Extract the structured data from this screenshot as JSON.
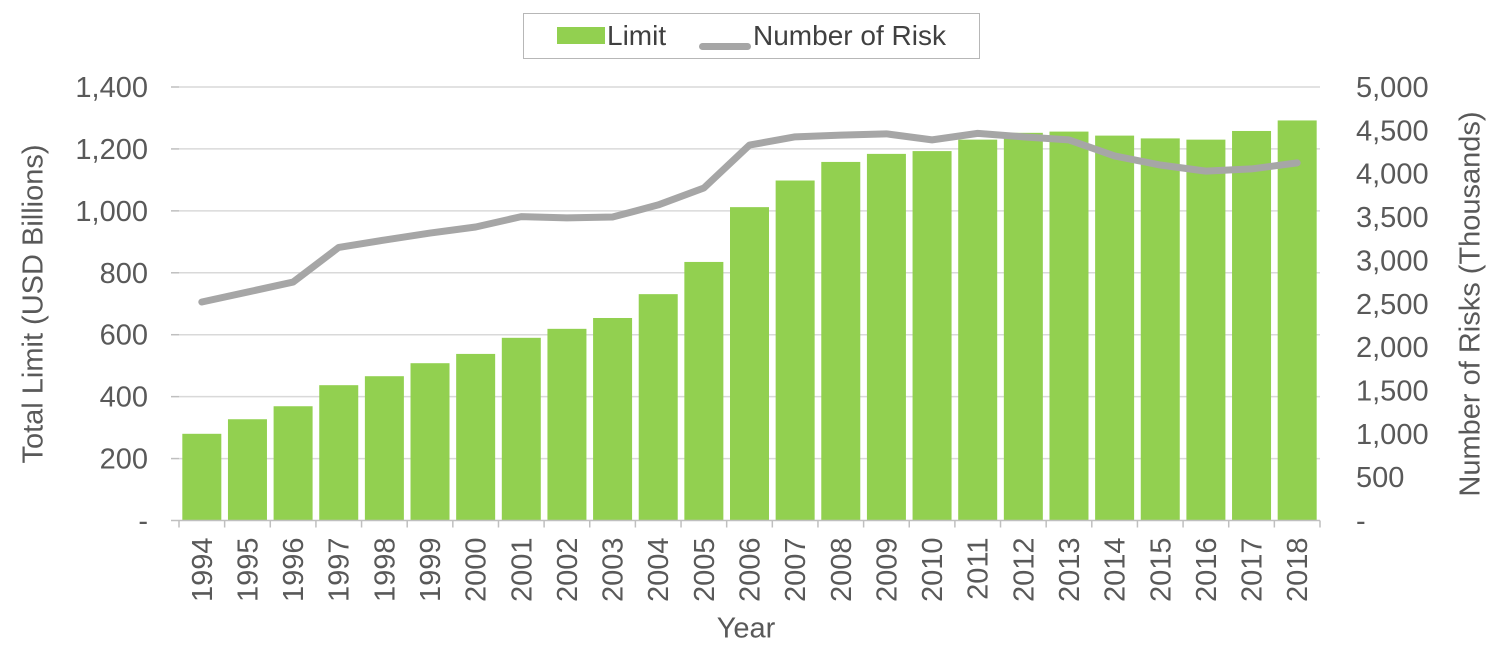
{
  "chart_data": {
    "type": "combo",
    "combo_of": [
      "bar",
      "line"
    ],
    "x_label": "Year",
    "categories": [
      "1994",
      "1995",
      "1996",
      "1997",
      "1998",
      "1999",
      "2000",
      "2001",
      "2002",
      "2003",
      "2004",
      "2005",
      "2006",
      "2007",
      "2008",
      "2009",
      "2010",
      "2011",
      "2012",
      "2013",
      "2014",
      "2015",
      "2016",
      "2017",
      "2018"
    ],
    "series": [
      {
        "name": "Limit",
        "type": "bar",
        "axis": "left",
        "color": "#92D050",
        "values": [
          280,
          327,
          369,
          437,
          466,
          508,
          538,
          590,
          619,
          654,
          731,
          835,
          1012,
          1098,
          1158,
          1184,
          1193,
          1230,
          1252,
          1256,
          1243,
          1234,
          1230,
          1258,
          1292
        ]
      },
      {
        "name": "Number of Risk",
        "type": "line",
        "axis": "right",
        "color": "#A6A6A6",
        "values": [
          2520,
          2635,
          2750,
          3150,
          3235,
          3315,
          3385,
          3505,
          3490,
          3500,
          3640,
          3835,
          4330,
          4425,
          4445,
          4460,
          4390,
          4465,
          4425,
          4390,
          4205,
          4100,
          4030,
          4055,
          4125
        ]
      }
    ],
    "left_axis": {
      "title": "Total Limit (USD Billions)",
      "min": 0,
      "max": 1400,
      "step": 200,
      "tick_labels": [
        "-",
        "200",
        "400",
        "600",
        "800",
        "1,000",
        "1,200",
        "1,400"
      ]
    },
    "right_axis": {
      "title": "Number of Risks (Thousands)",
      "min": 0,
      "max": 5000,
      "step": 500,
      "tick_labels": [
        "-",
        "500",
        "1,000",
        "1,500",
        "2,000",
        "2,500",
        "3,000",
        "3,500",
        "4,000",
        "4,500",
        "5,000"
      ]
    },
    "legend": {
      "position": "top",
      "items": [
        "Limit",
        "Number of Risk"
      ]
    },
    "grid": true,
    "colors": {
      "bar_fill": "#92D050",
      "line_stroke": "#A6A6A6",
      "gridline": "#D9D9D9",
      "axis_line": "#BFBFBF",
      "axis_text": "#595959",
      "legend_text": "#404040"
    }
  }
}
